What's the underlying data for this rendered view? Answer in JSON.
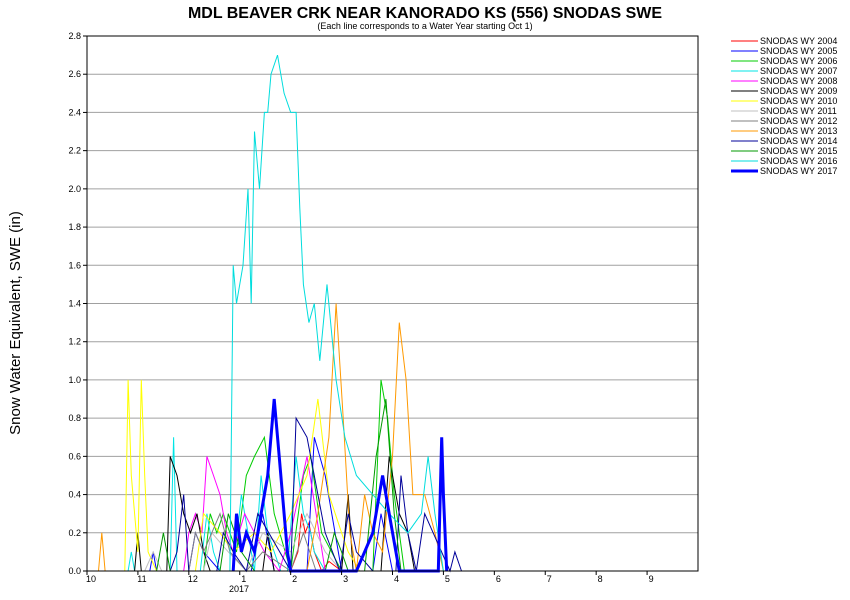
{
  "chart_data": {
    "type": "line",
    "title": "MDL BEAVER CRK NEAR KANORADO KS (556) SNODAS SWE",
    "subtitle": "(Each line corresponds to a Water Year starting Oct 1)",
    "ylabel": "Snow Water Equivalent, SWE (in)",
    "xlabel": "",
    "x_tick_labels": [
      "10",
      "11",
      "12",
      "1",
      "2",
      "3",
      "4",
      "5",
      "6",
      "7",
      "8",
      "9"
    ],
    "x_year_label": "2017",
    "y_ticks": [
      "0.0",
      "0.2",
      "0.4",
      "0.6",
      "0.8",
      "1.0",
      "1.2",
      "1.4",
      "1.6",
      "1.8",
      "2.0",
      "2.2",
      "2.4",
      "2.6",
      "2.8"
    ],
    "ylim": [
      0,
      2.8
    ],
    "grid": "horizontal",
    "legend_position": "right",
    "series": [
      {
        "name": "SNODAS WY 2004",
        "color": "#ff0000",
        "width": 1,
        "x": [
          "2004-02-01",
          "2004-02-05",
          "2004-02-07",
          "2004-02-09",
          "2004-02-11",
          "2004-02-14",
          "2004-02-18",
          "2004-02-22",
          "2004-03-01"
        ],
        "y": [
          0,
          0.1,
          0.3,
          0.2,
          0.25,
          0.1,
          0,
          0.05,
          0
        ]
      },
      {
        "name": "SNODAS WY 2005",
        "color": "#0000ff",
        "width": 1,
        "x": [
          "2004-11-08",
          "2004-11-10",
          "2004-11-12",
          "2004-12-01",
          "2004-12-05",
          "2004-12-10",
          "2004-12-20",
          "2005-01-08",
          "2005-01-15",
          "2005-01-22",
          "2005-02-10",
          "2005-02-14",
          "2005-02-20",
          "2005-03-01",
          "2005-03-20",
          "2005-03-25",
          "2005-04-01"
        ],
        "y": [
          0,
          0.1,
          0,
          0,
          0.2,
          0.1,
          0,
          0,
          0.3,
          0,
          0,
          0.7,
          0.5,
          0,
          0,
          0.3,
          0
        ]
      },
      {
        "name": "SNODAS WY 2006",
        "color": "#00cc00",
        "width": 1,
        "x": [
          "2005-12-10",
          "2005-12-14",
          "2005-12-18",
          "2005-12-22",
          "2005-12-30",
          "2006-01-05",
          "2006-01-10",
          "2006-01-16",
          "2006-01-22",
          "2006-02-01",
          "2006-02-08",
          "2006-02-12",
          "2006-02-18",
          "2006-03-01",
          "2006-03-20",
          "2006-03-25",
          "2006-03-29",
          "2006-04-02",
          "2006-04-08"
        ],
        "y": [
          0,
          0.3,
          0.2,
          0.3,
          0.1,
          0.5,
          0.6,
          0.7,
          0.3,
          0,
          0.5,
          0.6,
          0.2,
          0,
          0,
          1.0,
          0.8,
          0.4,
          0
        ]
      },
      {
        "name": "SNODAS WY 2007",
        "color": "#00e5e5",
        "width": 1,
        "x": [
          "2006-10-26",
          "2006-10-28",
          "2006-10-30",
          "2006-11-20",
          "2006-11-22",
          "2006-11-24",
          "2006-12-08",
          "2006-12-12",
          "2006-12-16",
          "2006-12-20",
          "2006-12-28",
          "2007-01-02",
          "2007-01-06",
          "2007-01-10",
          "2007-01-14",
          "2007-01-18",
          "2007-01-22",
          "2007-01-26",
          "2007-01-30",
          "2007-02-04",
          "2007-02-08",
          "2007-02-12",
          "2007-02-14",
          "2007-02-20",
          "2007-03-01"
        ],
        "y": [
          0,
          0.1,
          0,
          0,
          0.7,
          0,
          0,
          0.3,
          0.1,
          0,
          0,
          0.4,
          0.2,
          0,
          0.5,
          0.2,
          0.1,
          0,
          0,
          0.6,
          0.3,
          0.2,
          0.1,
          0,
          0
        ]
      },
      {
        "name": "SNODAS WY 2008",
        "color": "#ff00ff",
        "width": 1,
        "x": [
          "2007-11-28",
          "2007-12-01",
          "2007-12-05",
          "2007-12-09",
          "2007-12-12",
          "2007-12-16",
          "2007-12-20",
          "2007-12-24",
          "2007-12-28",
          "2008-01-04",
          "2008-01-10",
          "2008-01-16",
          "2008-01-25",
          "2008-02-01",
          "2008-02-10",
          "2008-02-15",
          "2008-02-20",
          "2008-03-01"
        ],
        "y": [
          0,
          0.2,
          0.3,
          0.2,
          0.6,
          0.5,
          0.4,
          0.2,
          0.1,
          0.3,
          0.2,
          0.1,
          0,
          0.2,
          0.6,
          0.3,
          0,
          0
        ]
      },
      {
        "name": "SNODAS WY 2009",
        "color": "#000000",
        "width": 1,
        "x": [
          "2008-10-30",
          "2008-11-01",
          "2008-11-03",
          "2008-11-18",
          "2008-11-20",
          "2008-11-24",
          "2008-11-28",
          "2008-12-02",
          "2008-12-06",
          "2008-12-10",
          "2008-12-14",
          "2009-01-15",
          "2009-01-18",
          "2009-01-22",
          "2009-03-01",
          "2009-03-05",
          "2009-03-08",
          "2009-03-25",
          "2009-03-30",
          "2009-04-05",
          "2009-04-10",
          "2009-04-14"
        ],
        "y": [
          0,
          0.2,
          0,
          0,
          0.6,
          0.5,
          0.3,
          0.2,
          0.3,
          0.1,
          0,
          0,
          0.2,
          0,
          0,
          0.4,
          0,
          0,
          0.6,
          0.3,
          0.2,
          0
        ]
      },
      {
        "name": "SNODAS WY 2010",
        "color": "#ffff00",
        "width": 1,
        "x": [
          "2009-10-24",
          "2009-10-26",
          "2009-10-28",
          "2009-11-01",
          "2009-11-03",
          "2009-11-05",
          "2009-11-07",
          "2009-11-12",
          "2009-11-16",
          "2009-12-05",
          "2009-12-10",
          "2009-12-20",
          "2009-12-28",
          "2010-01-10",
          "2010-01-20",
          "2010-02-01",
          "2010-02-10",
          "2010-02-16",
          "2010-02-22",
          "2010-03-01",
          "2010-03-05",
          "2010-03-12"
        ],
        "y": [
          0,
          1.0,
          0.5,
          0.1,
          1.0,
          0.5,
          0.1,
          0,
          0,
          0,
          0.3,
          0.2,
          0.1,
          0.2,
          0.1,
          0.3,
          0.5,
          0.9,
          0.4,
          0.2,
          0.1,
          0
        ]
      },
      {
        "name": "SNODAS WY 2011",
        "color": "#c0c0c0",
        "width": 1,
        "x": [
          "2010-11-05",
          "2010-11-10",
          "2010-11-15",
          "2010-12-10",
          "2010-12-15",
          "2010-12-25",
          "2011-01-05",
          "2011-01-15",
          "2011-02-01",
          "2011-02-10",
          "2011-02-20",
          "2011-03-01"
        ],
        "y": [
          0,
          0.1,
          0,
          0,
          0.2,
          0.1,
          0,
          0.2,
          0.1,
          0.3,
          0.1,
          0
        ]
      },
      {
        "name": "SNODAS WY 2012",
        "color": "#808080",
        "width": 1,
        "x": [
          "2011-12-01",
          "2011-12-05",
          "2011-12-10",
          "2011-12-20",
          "2011-12-26",
          "2012-01-05",
          "2012-01-15",
          "2012-02-01",
          "2012-02-08",
          "2012-02-15",
          "2012-03-01"
        ],
        "y": [
          0,
          0.2,
          0.1,
          0.3,
          0.1,
          0,
          0.1,
          0,
          0.2,
          0,
          0
        ]
      },
      {
        "name": "SNODAS WY 2013",
        "color": "#ff9900",
        "width": 1,
        "x": [
          "2012-10-08",
          "2012-10-10",
          "2012-10-12",
          "2013-02-10",
          "2013-02-16",
          "2013-02-22",
          "2013-02-26",
          "2013-03-02",
          "2013-03-06",
          "2013-03-10",
          "2013-03-15",
          "2013-03-20",
          "2013-03-26",
          "2013-04-01",
          "2013-04-05",
          "2013-04-09",
          "2013-04-13",
          "2013-04-20",
          "2013-04-26",
          "2013-05-01"
        ],
        "y": [
          0,
          0.2,
          0,
          0,
          0.3,
          0.7,
          1.4,
          0.8,
          0.2,
          0,
          0.4,
          0.2,
          0.1,
          0.6,
          1.3,
          1.0,
          0.4,
          0.4,
          0.2,
          0
        ]
      },
      {
        "name": "SNODAS WY 2014",
        "color": "#000099",
        "width": 1,
        "x": [
          "2013-11-20",
          "2013-11-24",
          "2013-11-28",
          "2013-12-01",
          "2013-12-18",
          "2013-12-22",
          "2013-12-28",
          "2014-01-05",
          "2014-01-12",
          "2014-02-01",
          "2014-02-04",
          "2014-02-10",
          "2014-02-16",
          "2014-02-20",
          "2014-02-28",
          "2014-03-05",
          "2014-03-10",
          "2014-03-20",
          "2014-04-03",
          "2014-04-06",
          "2014-04-10",
          "2014-04-15",
          "2014-04-20",
          "2014-05-05",
          "2014-05-08",
          "2014-05-12"
        ],
        "y": [
          0,
          0.1,
          0.4,
          0,
          0,
          0.2,
          0.1,
          0,
          0.3,
          0,
          0.8,
          0.7,
          0.4,
          0.2,
          0,
          0.3,
          0.1,
          0,
          0,
          0.5,
          0.2,
          0,
          0.3,
          0,
          0.1,
          0
        ]
      },
      {
        "name": "SNODAS WY 2015",
        "color": "#009900",
        "width": 1,
        "x": [
          "2014-11-12",
          "2014-11-16",
          "2014-11-20",
          "2014-12-20",
          "2014-12-25",
          "2015-01-02",
          "2015-01-10",
          "2015-02-20",
          "2015-02-25",
          "2015-03-01",
          "2015-03-05",
          "2015-03-15",
          "2015-03-22",
          "2015-03-28",
          "2015-04-02",
          "2015-04-06"
        ],
        "y": [
          0,
          0.2,
          0,
          0,
          0.3,
          0.1,
          0,
          0,
          0.2,
          0.1,
          0,
          0,
          0.6,
          0.9,
          0.3,
          0
        ]
      },
      {
        "name": "SNODAS WY 2016",
        "color": "#00dddd",
        "width": 1,
        "x": [
          "2015-12-26",
          "2015-12-28",
          "2015-12-30",
          "2016-01-03",
          "2016-01-06",
          "2016-01-08",
          "2016-01-10",
          "2016-01-13",
          "2016-01-16",
          "2016-01-18",
          "2016-01-20",
          "2016-01-24",
          "2016-01-28",
          "2016-02-01",
          "2016-02-04",
          "2016-02-06",
          "2016-02-08",
          "2016-02-11",
          "2016-02-14",
          "2016-02-17",
          "2016-02-21",
          "2016-02-26",
          "2016-03-03",
          "2016-03-10",
          "2016-03-20",
          "2016-03-30",
          "2016-04-10",
          "2016-04-18",
          "2016-04-22",
          "2016-04-26",
          "2016-05-01"
        ],
        "y": [
          0,
          1.6,
          1.4,
          1.6,
          2.0,
          1.4,
          2.3,
          2.0,
          2.4,
          2.4,
          2.6,
          2.7,
          2.5,
          2.4,
          2.4,
          1.9,
          1.5,
          1.3,
          1.4,
          1.1,
          1.5,
          1.0,
          0.7,
          0.5,
          0.4,
          0.3,
          0.2,
          0.3,
          0.6,
          0.3,
          0
        ]
      },
      {
        "name": "SNODAS WY 2017",
        "color": "#0000ff",
        "width": 3,
        "x": [
          "2016-12-28",
          "2016-12-30",
          "2017-01-02",
          "2017-01-05",
          "2017-01-10",
          "2017-01-14",
          "2017-01-18",
          "2017-01-22",
          "2017-01-25",
          "2017-01-28",
          "2017-01-30",
          "2017-02-01",
          "2017-03-10",
          "2017-03-20",
          "2017-03-26",
          "2017-03-30",
          "2017-04-05",
          "2017-04-28",
          "2017-04-30",
          "2017-05-01",
          "2017-05-03"
        ],
        "y": [
          0,
          0.3,
          0.1,
          0.2,
          0.1,
          0.3,
          0.5,
          0.9,
          0.6,
          0.3,
          0.1,
          0,
          0,
          0.2,
          0.5,
          0.3,
          0,
          0,
          0.7,
          0.4,
          0
        ]
      }
    ]
  }
}
